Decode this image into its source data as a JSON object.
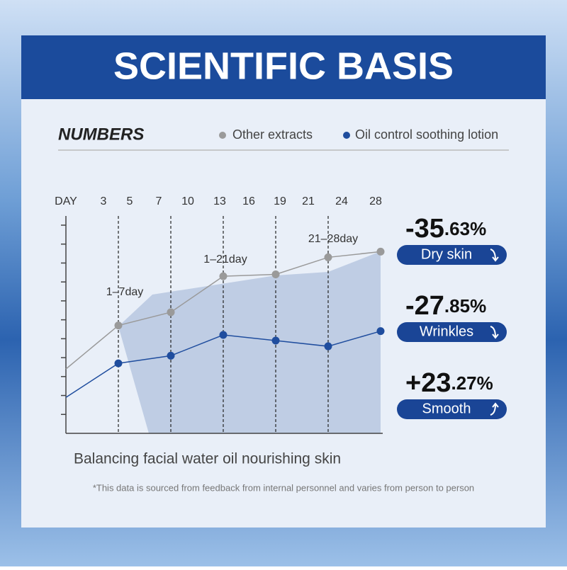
{
  "header": {
    "title": "SCIENTIFIC BASIS"
  },
  "section_title": "NUMBERS",
  "chart_data": {
    "type": "line",
    "day_labels": [
      "DAY",
      "3",
      "5",
      "7",
      "10",
      "13",
      "16",
      "19",
      "21",
      "24",
      "28"
    ],
    "categories": [
      null,
      null,
      null,
      null,
      null,
      null,
      null
    ],
    "series": [
      {
        "name": "Other extracts",
        "color": "#9a9a9a",
        "values": [
          3.4,
          5.7,
          6.4,
          8.3,
          8.4,
          9.3,
          9.6
        ]
      },
      {
        "name": "Oil control soothing lotion",
        "color": "#1f4d9e",
        "values": [
          1.9,
          3.7,
          4.1,
          5.2,
          4.9,
          4.6,
          5.4
        ]
      }
    ],
    "annotations": [
      "1–7day",
      "1–21day",
      "21–28day"
    ],
    "ylim": [
      0,
      11
    ],
    "yticks": [
      1,
      2,
      3,
      4,
      5,
      6,
      7,
      8,
      9,
      10,
      11
    ],
    "caption": "Balancing facial water oil nourishing skin"
  },
  "stats": [
    {
      "big": "-35",
      "small": ".63%",
      "label": "Dry skin"
    },
    {
      "big": "-27",
      "small": ".85%",
      "label": "Wrinkles"
    },
    {
      "big": "+23",
      "small": ".27%",
      "label": "Smooth"
    }
  ],
  "footnote": "*This data is sourced from feedback from internal personnel and varies from person to person"
}
